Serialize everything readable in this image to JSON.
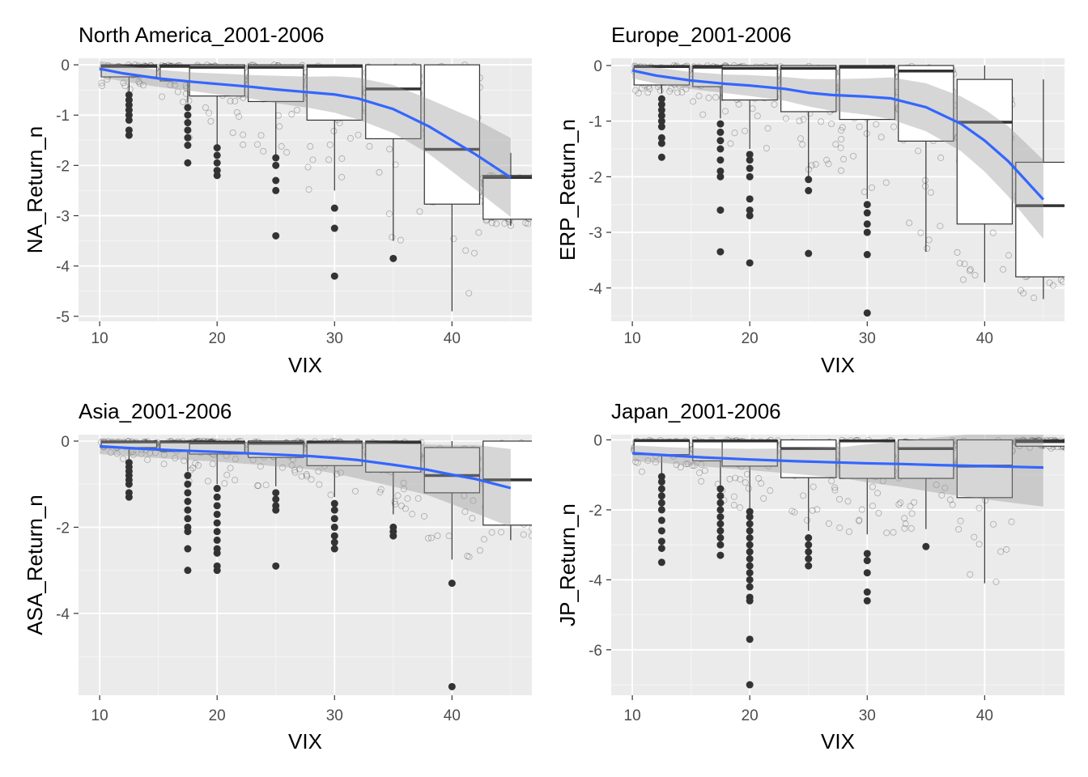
{
  "chart_data": [
    {
      "type": "boxplot+scatter+smooth",
      "title": "North America_2001-2006",
      "xlabel": "VIX",
      "ylabel": "NA_Return_n",
      "xlim": [
        8.2,
        46.8
      ],
      "ylim": [
        -5.1,
        0.13
      ],
      "xticks": [
        10,
        20,
        30,
        40
      ],
      "yticks": [
        0,
        -1,
        -2,
        -3,
        -4,
        -5
      ],
      "xtick_labels": [
        "10",
        "20",
        "30",
        "40"
      ],
      "ytick_labels": [
        "0",
        "-1",
        "-2",
        "-3",
        "-4",
        "-5"
      ],
      "grid": true,
      "boxes": [
        {
          "x": 12.5,
          "q1": -0.24,
          "median": -0.03,
          "q3": 0,
          "whisker_low": -0.55,
          "whisker_high": 0,
          "outliers": [
            -0.6,
            -0.7,
            -0.8,
            -0.9,
            -1.0,
            -1.1,
            -1.3,
            -1.4
          ]
        },
        {
          "x": 17.5,
          "q1": -0.32,
          "median": -0.03,
          "q3": 0,
          "whisker_low": -0.75,
          "whisker_high": 0,
          "outliers": [
            -0.85,
            -1.0,
            -1.15,
            -1.3,
            -1.45,
            -1.6,
            -1.95
          ]
        },
        {
          "x": 20,
          "q1": -0.62,
          "median": -0.05,
          "q3": 0,
          "whisker_low": -1.6,
          "whisker_high": 0,
          "outliers": [
            -1.65,
            -1.8,
            -1.95,
            -2.1,
            -2.2
          ]
        },
        {
          "x": 25,
          "q1": -0.73,
          "median": -0.05,
          "q3": 0,
          "whisker_low": -1.8,
          "whisker_high": 0,
          "outliers": [
            -1.85,
            -2.0,
            -2.3,
            -2.5,
            -3.4
          ]
        },
        {
          "x": 30,
          "q1": -1.1,
          "median": -0.03,
          "q3": 0,
          "whisker_low": -2.5,
          "whisker_high": 0,
          "outliers": [
            -2.85,
            -3.25,
            -4.2
          ]
        },
        {
          "x": 35,
          "q1": -1.47,
          "median": -0.48,
          "q3": 0,
          "whisker_low": -3.5,
          "whisker_high": 0,
          "outliers": [
            -3.85
          ]
        },
        {
          "x": 40,
          "q1": -2.77,
          "median": -1.68,
          "q3": 0,
          "whisker_low": -4.9,
          "whisker_high": 0,
          "outliers": []
        },
        {
          "x": 45,
          "q1": -3.07,
          "median": -2.24,
          "q3": -2.2,
          "whisker_low": -3.2,
          "whisker_high": -1.75,
          "outliers": []
        }
      ],
      "smooth": [
        [
          10,
          -0.08
        ],
        [
          12,
          -0.17
        ],
        [
          15,
          -0.27
        ],
        [
          18,
          -0.34
        ],
        [
          20,
          -0.38
        ],
        [
          23,
          -0.44
        ],
        [
          25,
          -0.49
        ],
        [
          28,
          -0.55
        ],
        [
          30,
          -0.59
        ],
        [
          32,
          -0.67
        ],
        [
          35,
          -0.88
        ],
        [
          38,
          -1.22
        ],
        [
          40,
          -1.5
        ],
        [
          42,
          -1.78
        ],
        [
          45,
          -2.24
        ]
      ]
    },
    {
      "type": "boxplot+scatter+smooth",
      "title": "Europe_2001-2006",
      "xlabel": "VIX",
      "ylabel": "ERP_Return_n",
      "xlim": [
        8.2,
        46.8
      ],
      "ylim": [
        -4.6,
        0.13
      ],
      "xticks": [
        10,
        20,
        30,
        40
      ],
      "yticks": [
        0,
        -1,
        -2,
        -3,
        -4
      ],
      "xtick_labels": [
        "10",
        "20",
        "30",
        "40"
      ],
      "ytick_labels": [
        "0",
        "-1",
        "-2",
        "-3",
        "-4"
      ],
      "grid": true,
      "boxes": [
        {
          "x": 12.5,
          "q1": -0.35,
          "median": -0.02,
          "q3": 0,
          "whisker_low": -0.5,
          "whisker_high": 0,
          "outliers": [
            -0.6,
            -0.7,
            -0.8,
            -0.9,
            -1.0,
            -1.1,
            -1.3,
            -1.4,
            -1.65
          ]
        },
        {
          "x": 17.5,
          "q1": -0.38,
          "median": -0.03,
          "q3": 0,
          "whisker_low": -0.95,
          "whisker_high": 0,
          "outliers": [
            -1.05,
            -1.2,
            -1.35,
            -1.5,
            -1.7,
            -1.9,
            -2.0,
            -2.6,
            -3.35
          ]
        },
        {
          "x": 20,
          "q1": -0.62,
          "median": -0.05,
          "q3": 0,
          "whisker_low": -1.5,
          "whisker_high": 0,
          "outliers": [
            -1.6,
            -1.7,
            -1.85,
            -2.0,
            -2.4,
            -2.6,
            -2.7,
            -3.55
          ]
        },
        {
          "x": 25,
          "q1": -0.83,
          "median": -0.05,
          "q3": 0,
          "whisker_low": -2.0,
          "whisker_high": 0,
          "outliers": [
            -2.05,
            -2.25,
            -3.38
          ]
        },
        {
          "x": 30,
          "q1": -0.97,
          "median": -0.03,
          "q3": 0,
          "whisker_low": -2.4,
          "whisker_high": 0,
          "outliers": [
            -2.5,
            -2.65,
            -2.85,
            -3.0,
            -3.4,
            -4.45
          ]
        },
        {
          "x": 35,
          "q1": -1.36,
          "median": -0.1,
          "q3": 0,
          "whisker_low": -3.35,
          "whisker_high": 0,
          "outliers": []
        },
        {
          "x": 40,
          "q1": -2.85,
          "median": -1.02,
          "q3": -0.25,
          "whisker_low": -3.9,
          "whisker_high": 0,
          "outliers": []
        },
        {
          "x": 45,
          "q1": -3.8,
          "median": -2.52,
          "q3": -1.74,
          "whisker_low": -4.2,
          "whisker_high": -0.25,
          "outliers": []
        }
      ],
      "smooth": [
        [
          10,
          -0.09
        ],
        [
          12,
          -0.18
        ],
        [
          15,
          -0.27
        ],
        [
          18,
          -0.33
        ],
        [
          20,
          -0.36
        ],
        [
          23,
          -0.42
        ],
        [
          25,
          -0.49
        ],
        [
          27,
          -0.53
        ],
        [
          30,
          -0.56
        ],
        [
          32,
          -0.59
        ],
        [
          35,
          -0.75
        ],
        [
          38,
          -1.05
        ],
        [
          40,
          -1.35
        ],
        [
          42,
          -1.72
        ],
        [
          45,
          -2.41
        ]
      ]
    },
    {
      "type": "boxplot+scatter+smooth",
      "title": "Asia_2001-2006",
      "xlabel": "VIX",
      "ylabel": "ASA_Return_n",
      "xlim": [
        8.2,
        46.8
      ],
      "ylim": [
        -5.9,
        0.15
      ],
      "xticks": [
        10,
        20,
        30,
        40
      ],
      "yticks": [
        0,
        -2,
        -4
      ],
      "xtick_labels": [
        "10",
        "20",
        "30",
        "40"
      ],
      "ytick_labels": [
        "0",
        "-2",
        "-4"
      ],
      "grid": true,
      "boxes": [
        {
          "x": 12.5,
          "q1": -0.15,
          "median": -0.02,
          "q3": 0,
          "whisker_low": -0.45,
          "whisker_high": 0,
          "outliers": [
            -0.5,
            -0.6,
            -0.7,
            -0.8,
            -0.9,
            -1.0,
            -1.2,
            -1.3
          ]
        },
        {
          "x": 17.5,
          "q1": -0.24,
          "median": -0.02,
          "q3": 0,
          "whisker_low": -0.7,
          "whisker_high": 0,
          "outliers": [
            -0.8,
            -1.0,
            -1.2,
            -1.4,
            -1.6,
            -1.8,
            -2.0,
            -2.1,
            -2.5,
            -3.0
          ]
        },
        {
          "x": 20,
          "q1": -0.3,
          "median": -0.04,
          "q3": 0,
          "whisker_low": -1.0,
          "whisker_high": 0,
          "outliers": [
            -1.1,
            -1.3,
            -1.5,
            -1.7,
            -1.9,
            -2.1,
            -2.3,
            -2.5,
            -2.6,
            -2.9,
            -3.0
          ]
        },
        {
          "x": 25,
          "q1": -0.38,
          "median": -0.05,
          "q3": 0,
          "whisker_low": -1.05,
          "whisker_high": 0,
          "outliers": [
            -1.2,
            -1.35,
            -1.5,
            -1.6,
            -2.9
          ]
        },
        {
          "x": 30,
          "q1": -0.57,
          "median": -0.03,
          "q3": 0,
          "whisker_low": -1.3,
          "whisker_high": 0,
          "outliers": [
            -1.45,
            -1.6,
            -1.8,
            -2.0,
            -2.2,
            -2.35,
            -2.5
          ]
        },
        {
          "x": 35,
          "q1": -0.72,
          "median": -0.03,
          "q3": 0,
          "whisker_low": -1.7,
          "whisker_high": 0,
          "outliers": [
            -2.0,
            -2.1,
            -2.2
          ]
        },
        {
          "x": 40,
          "q1": -1.2,
          "median": -0.8,
          "q3": -0.15,
          "whisker_low": -2.75,
          "whisker_high": 0,
          "outliers": [
            -3.3,
            -5.7
          ]
        },
        {
          "x": 45,
          "q1": -1.95,
          "median": -0.9,
          "q3": 0,
          "whisker_low": -2.3,
          "whisker_high": 0,
          "outliers": []
        }
      ],
      "smooth": [
        [
          10,
          -0.12
        ],
        [
          13,
          -0.17
        ],
        [
          16,
          -0.21
        ],
        [
          20,
          -0.25
        ],
        [
          24,
          -0.3
        ],
        [
          28,
          -0.35
        ],
        [
          30,
          -0.39
        ],
        [
          32,
          -0.44
        ],
        [
          35,
          -0.55
        ],
        [
          38,
          -0.67
        ],
        [
          40,
          -0.78
        ],
        [
          42,
          -0.88
        ],
        [
          45,
          -1.09
        ]
      ]
    },
    {
      "type": "boxplot+scatter+smooth",
      "title": "Japan_2001-2006",
      "xlabel": "VIX",
      "ylabel": "JP_Return_n",
      "xlim": [
        8.2,
        46.8
      ],
      "ylim": [
        -7.3,
        0.15
      ],
      "xticks": [
        10,
        20,
        30,
        40
      ],
      "yticks": [
        0,
        -2,
        -4,
        -6
      ],
      "xtick_labels": [
        "10",
        "20",
        "30",
        "40"
      ],
      "ytick_labels": [
        "0",
        "-2",
        "-4",
        "-6"
      ],
      "grid": true,
      "boxes": [
        {
          "x": 12.5,
          "q1": -0.42,
          "median": -0.02,
          "q3": 0,
          "whisker_low": -0.95,
          "whisker_high": 0,
          "outliers": [
            -1.05,
            -1.2,
            -1.4,
            -1.6,
            -1.8,
            -2.0,
            -2.3,
            -2.6,
            -2.9,
            -3.1,
            -3.5
          ]
        },
        {
          "x": 17.5,
          "q1": -0.6,
          "median": -0.03,
          "q3": 0,
          "whisker_low": -1.3,
          "whisker_high": 0,
          "outliers": [
            -1.4,
            -1.6,
            -1.8,
            -2.0,
            -2.2,
            -2.4,
            -2.6,
            -2.8,
            -3.0,
            -3.3
          ]
        },
        {
          "x": 20,
          "q1": -0.75,
          "median": -0.03,
          "q3": 0,
          "whisker_low": -2.0,
          "whisker_high": 0,
          "outliers": [
            -2.05,
            -2.2,
            -2.4,
            -2.6,
            -2.8,
            -3.0,
            -3.2,
            -3.4,
            -3.6,
            -3.8,
            -4.0,
            -4.2,
            -4.5,
            -4.6,
            -5.7,
            -7.0
          ]
        },
        {
          "x": 25,
          "q1": -1.08,
          "median": -0.25,
          "q3": 0,
          "whisker_low": -2.6,
          "whisker_high": 0,
          "outliers": [
            -2.8,
            -3.0,
            -3.2,
            -3.4,
            -3.6
          ]
        },
        {
          "x": 30,
          "q1": -1.1,
          "median": -0.03,
          "q3": 0,
          "whisker_low": -2.7,
          "whisker_high": 0,
          "outliers": [
            -3.25,
            -3.45,
            -3.8,
            -4.35,
            -4.6
          ]
        },
        {
          "x": 35,
          "q1": -1.1,
          "median": -0.25,
          "q3": 0,
          "whisker_low": -2.55,
          "whisker_high": 0,
          "outliers": [
            -3.05
          ]
        },
        {
          "x": 40,
          "q1": -1.65,
          "median": -0.75,
          "q3": 0,
          "whisker_low": -4.1,
          "whisker_high": 0,
          "outliers": []
        },
        {
          "x": 45,
          "q1": -0.18,
          "median": -0.05,
          "q3": 0,
          "whisker_low": -0.25,
          "whisker_high": 0,
          "outliers": []
        }
      ],
      "smooth": [
        [
          10,
          -0.38
        ],
        [
          13,
          -0.44
        ],
        [
          16,
          -0.5
        ],
        [
          20,
          -0.56
        ],
        [
          24,
          -0.61
        ],
        [
          28,
          -0.65
        ],
        [
          30,
          -0.67
        ],
        [
          33,
          -0.69
        ],
        [
          36,
          -0.72
        ],
        [
          40,
          -0.75
        ],
        [
          45,
          -0.79
        ]
      ]
    }
  ]
}
